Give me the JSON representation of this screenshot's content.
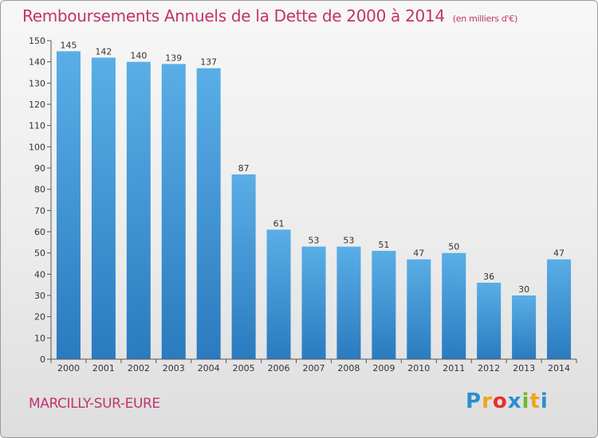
{
  "chart_data": {
    "type": "bar",
    "title": "Remboursements Annuels de la Dette de 2000 à 2014",
    "unit": "(en milliers d'€)",
    "categories": [
      "2000",
      "2001",
      "2002",
      "2003",
      "2004",
      "2005",
      "2006",
      "2007",
      "2008",
      "2009",
      "2010",
      "2011",
      "2012",
      "2013",
      "2014"
    ],
    "values": [
      145,
      142,
      140,
      139,
      137,
      87,
      61,
      53,
      53,
      51,
      47,
      50,
      36,
      30,
      47
    ],
    "ylim": [
      0,
      150
    ],
    "yticks": [
      0,
      10,
      20,
      30,
      40,
      50,
      60,
      70,
      80,
      90,
      100,
      110,
      120,
      130,
      140,
      150
    ],
    "xlabel": "",
    "ylabel": "",
    "grid": false
  },
  "commune": "MARCILLY-SUR-EURE",
  "logo": {
    "letters": [
      "P",
      "r",
      "o",
      "x",
      "i",
      "t",
      "i"
    ],
    "colors": [
      "#2a8fd0",
      "#f0a41c",
      "#e4302b",
      "#2a8fd0",
      "#6bb82e",
      "#f0a41c",
      "#2a8fd0"
    ]
  },
  "colors": {
    "bar_top": "#5aaee6",
    "bar_bottom": "#2a7bbf",
    "accent": "#c0336e"
  }
}
